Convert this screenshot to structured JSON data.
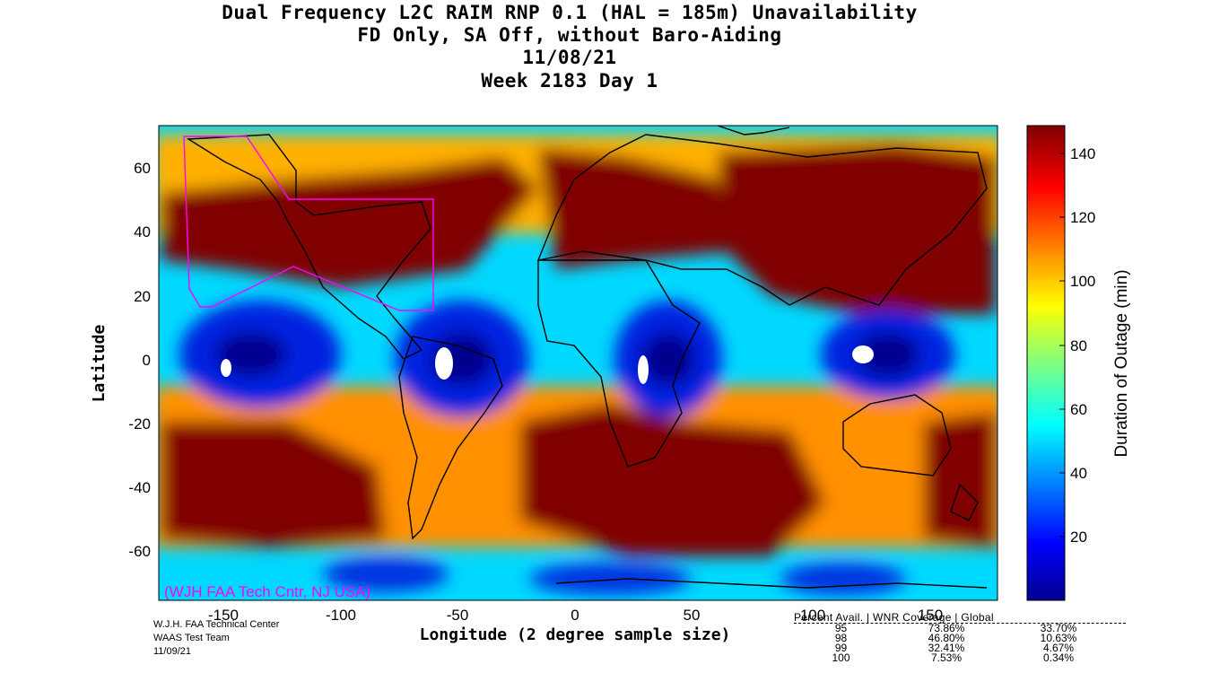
{
  "title": {
    "line1": "Dual Frequency L2C RAIM RNP 0.1 (HAL = 185m) Unavailability",
    "line2": "FD Only, SA Off, without Baro-Aiding",
    "line3": "11/08/21",
    "line4": "Week 2183 Day 1"
  },
  "map": {
    "xlabel": "Longitude (2 degree sample size)",
    "ylabel": "Latitude",
    "lon_ticks": [
      "-150",
      "-100",
      "-50",
      "0",
      "50",
      "100",
      "150"
    ],
    "lat_ticks": [
      "60",
      "40",
      "20",
      "0",
      "-20",
      "-40",
      "-60"
    ],
    "watermark": "(WJH FAA Tech Cntr, NJ USA)",
    "watermark_color": "#ff00ff",
    "region_outline_color": "#ff00ff"
  },
  "colorbar": {
    "label": "Duration of Outage (min)",
    "ticks": [
      "20",
      "40",
      "60",
      "80",
      "100",
      "120",
      "140"
    ],
    "range": [
      0,
      150
    ],
    "colormap": "jet"
  },
  "credits": {
    "line1": "W.J.H. FAA Technical Center",
    "line2": "WAAS Test Team",
    "line3": "11/09/21"
  },
  "stats": {
    "header": "Percent  Avail. | WNR Coverage | Global",
    "rows": [
      {
        "percent": "95",
        "wnr": "73.86%",
        "global": "33.70%"
      },
      {
        "percent": "98",
        "wnr": "46.80%",
        "global": "10.63%"
      },
      {
        "percent": "99",
        "wnr": "32.41%",
        "global": "4.67%"
      },
      {
        "percent": "100",
        "wnr": "7.53%",
        "global": "0.34%"
      }
    ]
  }
}
